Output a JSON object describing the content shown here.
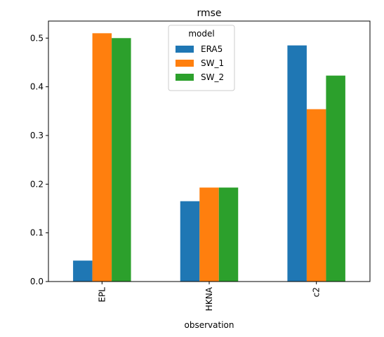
{
  "chart_data": {
    "type": "bar",
    "title": "rmse",
    "xlabel": "observation",
    "ylabel": "",
    "categories": [
      "EPL",
      "HKNA",
      "c2"
    ],
    "series": [
      {
        "name": "ERA5",
        "color": "#1f77b4",
        "values": [
          0.043,
          0.165,
          0.485
        ]
      },
      {
        "name": "SW_1",
        "color": "#ff7f0e",
        "values": [
          0.51,
          0.193,
          0.354
        ]
      },
      {
        "name": "SW_2",
        "color": "#2ca02c",
        "values": [
          0.5,
          0.193,
          0.423
        ]
      }
    ],
    "ylim": [
      0,
      0.535
    ],
    "yticks": [
      "0.0",
      "0.1",
      "0.2",
      "0.3",
      "0.4",
      "0.5"
    ],
    "legend": {
      "title": "model",
      "position": "upper-center"
    },
    "grid": false
  }
}
